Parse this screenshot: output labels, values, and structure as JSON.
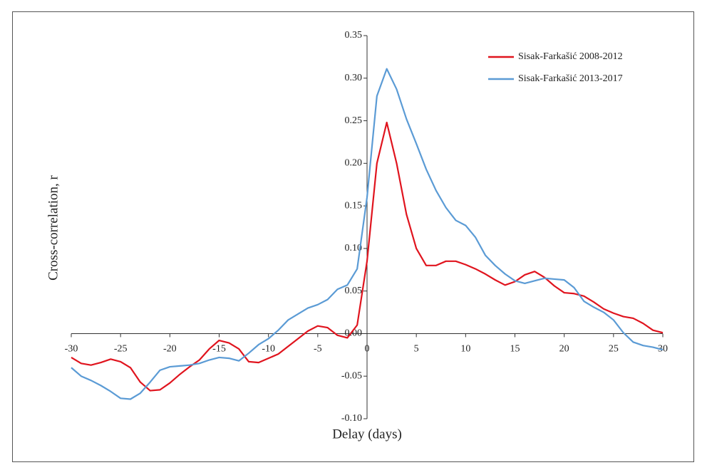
{
  "chart_data": {
    "type": "line",
    "xlabel": "Delay (days)",
    "ylabel": "Cross-correlation, r",
    "x": [
      -30,
      -29,
      -28,
      -27,
      -26,
      -25,
      -24,
      -23,
      -22,
      -21,
      -20,
      -19,
      -18,
      -17,
      -16,
      -15,
      -14,
      -13,
      -12,
      -11,
      -10,
      -9,
      -8,
      -7,
      -6,
      -5,
      -4,
      -3,
      -2,
      -1,
      0,
      1,
      2,
      3,
      4,
      5,
      6,
      7,
      8,
      9,
      10,
      11,
      12,
      13,
      14,
      15,
      16,
      17,
      18,
      19,
      20,
      21,
      22,
      23,
      24,
      25,
      26,
      27,
      28,
      29,
      30
    ],
    "series": [
      {
        "name": "Sisak-Farkašić 2008-2012",
        "color": "#e0141e",
        "values": [
          -0.028,
          -0.035,
          -0.037,
          -0.034,
          -0.03,
          -0.033,
          -0.04,
          -0.057,
          -0.067,
          -0.066,
          -0.058,
          -0.048,
          -0.039,
          -0.031,
          -0.018,
          -0.008,
          -0.011,
          -0.018,
          -0.033,
          -0.034,
          -0.029,
          -0.024,
          -0.015,
          -0.006,
          0.003,
          0.009,
          0.007,
          -0.002,
          -0.005,
          0.01,
          0.085,
          0.2,
          0.248,
          0.2,
          0.14,
          0.1,
          0.08,
          0.08,
          0.085,
          0.085,
          0.081,
          0.076,
          0.07,
          0.063,
          0.057,
          0.061,
          0.069,
          0.073,
          0.066,
          0.056,
          0.048,
          0.047,
          0.044,
          0.037,
          0.029,
          0.024,
          0.02,
          0.018,
          0.012,
          0.004,
          0.001
        ]
      },
      {
        "name": "Sisak-Farkašić 2013-2017",
        "color": "#5b9bd5",
        "values": [
          -0.04,
          -0.05,
          -0.055,
          -0.061,
          -0.068,
          -0.076,
          -0.077,
          -0.07,
          -0.057,
          -0.043,
          -0.039,
          -0.038,
          -0.037,
          -0.035,
          -0.031,
          -0.028,
          -0.029,
          -0.032,
          -0.023,
          -0.013,
          -0.006,
          0.004,
          0.016,
          0.023,
          0.03,
          0.034,
          0.04,
          0.052,
          0.057,
          0.076,
          0.16,
          0.279,
          0.311,
          0.287,
          0.252,
          0.223,
          0.193,
          0.168,
          0.148,
          0.133,
          0.127,
          0.113,
          0.092,
          0.08,
          0.07,
          0.062,
          0.059,
          0.062,
          0.065,
          0.064,
          0.063,
          0.054,
          0.038,
          0.031,
          0.025,
          0.016,
          0.001,
          -0.01,
          -0.014,
          -0.016,
          -0.019
        ]
      }
    ],
    "xlim": [
      -30,
      30
    ],
    "xticks": [
      -30,
      -25,
      -20,
      -15,
      -10,
      -5,
      0,
      5,
      10,
      15,
      20,
      25,
      30
    ],
    "ylim": [
      -0.1,
      0.35
    ],
    "yticks": [
      {
        "value": 0.35,
        "label": "0.35"
      },
      {
        "value": 0.3,
        "label": "0.30"
      },
      {
        "value": 0.25,
        "label": "0.25"
      },
      {
        "value": 0.2,
        "label": "0.20"
      },
      {
        "value": 0.15,
        "label": "0.15"
      },
      {
        "value": 0.1,
        "label": "0.10"
      },
      {
        "value": 0.05,
        "label": "0.05"
      },
      {
        "value": 0.0,
        "label": "0.00"
      },
      {
        "value": -0.05,
        "label": "-0.05"
      },
      {
        "value": -0.1,
        "label": "-0.10"
      }
    ],
    "grid": false,
    "legend": "top-right"
  }
}
